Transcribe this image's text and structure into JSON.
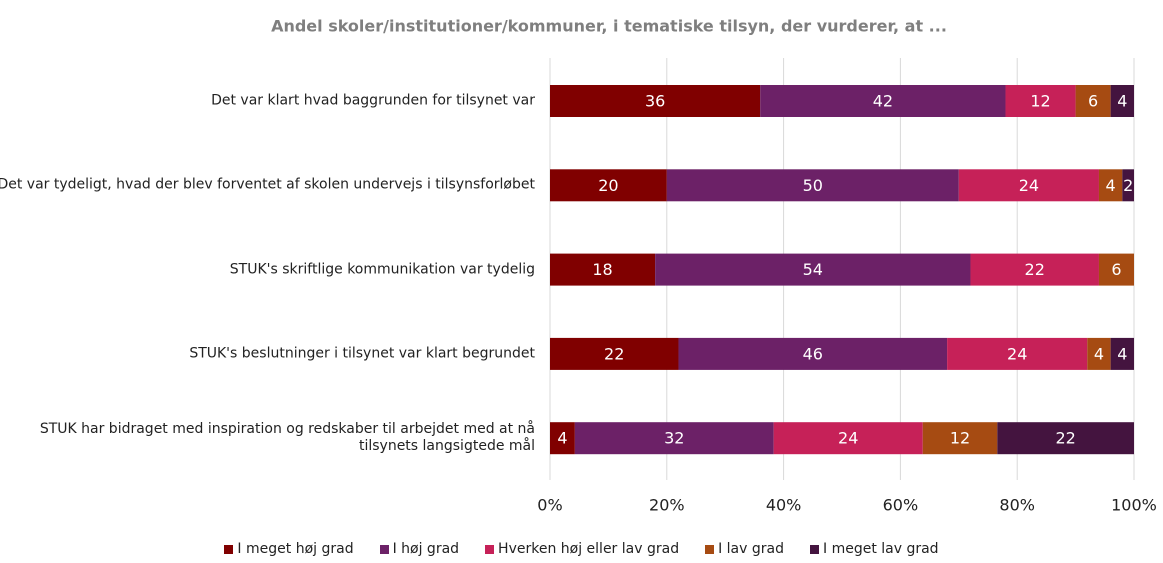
{
  "chart_data": {
    "type": "bar",
    "orientation": "horizontal",
    "stacked": "percent",
    "title": "Andel skoler/institutioner/kommuner, i tematiske tilsyn, der vurderer, at ...",
    "categories": [
      "Det var klart hvad baggrunden for tilsynet var",
      "Det var tydeligt, hvad der blev forventet af skolen undervejs i tilsynsforløbet",
      "STUK's skriftlige kommunikation var tydelig",
      "STUK's beslutninger i tilsynet var klart begrundet",
      "STUK har bidraget med inspiration og redskaber til arbejdet med at nå tilsynets langsigtede mål"
    ],
    "series": [
      {
        "name": "I meget høj grad",
        "color": "#800000",
        "values": [
          36,
          20,
          18,
          22,
          4
        ]
      },
      {
        "name": "I høj grad",
        "color": "#6c2167",
        "values": [
          42,
          50,
          54,
          46,
          32
        ]
      },
      {
        "name": "Hverken høj eller lav grad",
        "color": "#c62158",
        "values": [
          12,
          24,
          22,
          24,
          24
        ]
      },
      {
        "name": "I lav grad",
        "color": "#a64b12",
        "values": [
          6,
          4,
          6,
          4,
          12
        ]
      },
      {
        "name": "I meget lav grad",
        "color": "#44143f",
        "values": [
          4,
          2,
          null,
          4,
          22
        ]
      }
    ],
    "xlim": [
      0,
      100
    ],
    "xticks": [
      {
        "value": 0,
        "label": "0%"
      },
      {
        "value": 20,
        "label": "20%"
      },
      {
        "value": 40,
        "label": "40%"
      },
      {
        "value": 60,
        "label": "60%"
      },
      {
        "value": 80,
        "label": "80%"
      },
      {
        "value": 100,
        "label": "100%"
      }
    ],
    "grid": true,
    "legend": "bottom"
  }
}
